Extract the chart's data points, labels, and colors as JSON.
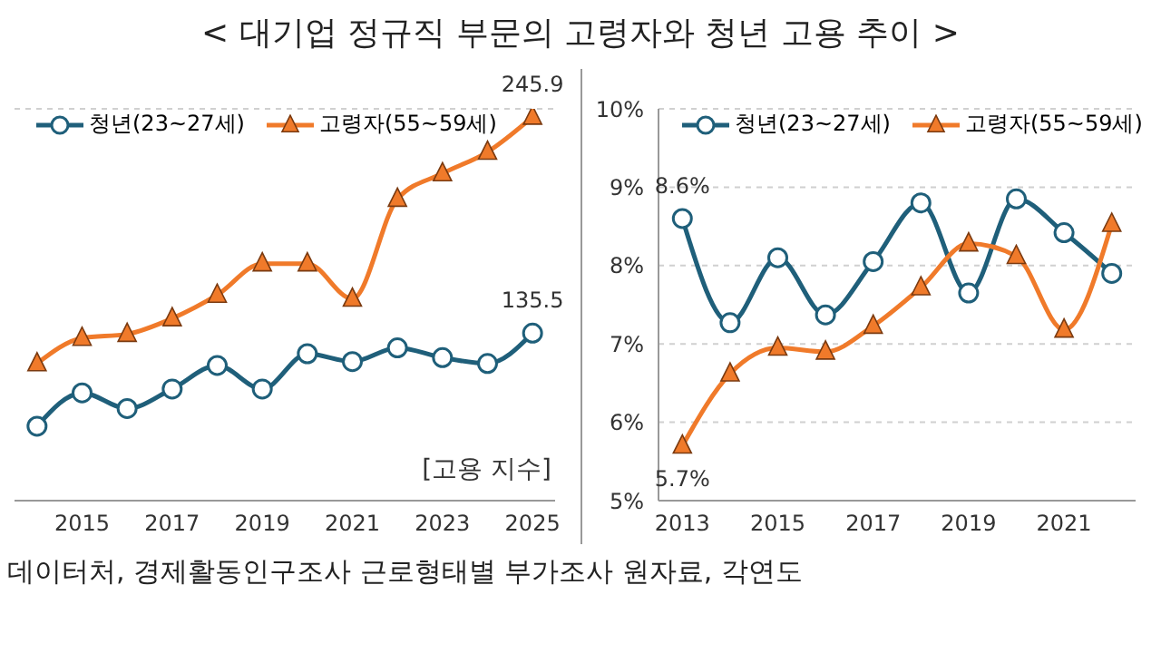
{
  "chart_data": [
    {
      "type": "line",
      "title": "< 대기업 정규직 부문의 고령자와 청년 고용 추이 >",
      "annotations": [
        "[고용 지수]",
        "데이터처, 경제활동인구조사 근로형태별 부가조사 원자료, 각연도"
      ],
      "x": [
        2014,
        2015,
        2016,
        2017,
        2018,
        2019,
        2020,
        2021,
        2022,
        2023,
        2024,
        2025
      ],
      "xlim": [
        2013.5,
        2025.5
      ],
      "xticks": [
        2015,
        2017,
        2019,
        2021,
        2023,
        2025
      ],
      "ylim": [
        50,
        250
      ],
      "tick_labels": "x",
      "grid": "y",
      "legend": "top left",
      "series": [
        {
          "name": "청년(23~27세)",
          "color": "#1f5f7a",
          "marker": "circle",
          "values": [
            88,
            105,
            97,
            107,
            119,
            107,
            125,
            121,
            128,
            123,
            120,
            135.5
          ],
          "value_labels": [
            null,
            null,
            null,
            null,
            null,
            null,
            null,
            null,
            null,
            null,
            null,
            "135.5"
          ]
        },
        {
          "name": "고령자(55~59세)",
          "color": "#f07a2a",
          "marker": "triangle",
          "values": [
            120,
            133,
            135,
            143,
            155,
            171,
            171,
            153,
            204,
            217,
            228,
            245.9
          ],
          "value_labels": [
            null,
            null,
            null,
            null,
            null,
            null,
            null,
            null,
            null,
            null,
            null,
            "245.9"
          ]
        }
      ]
    },
    {
      "type": "line",
      "x": [
        2013,
        2014,
        2015,
        2016,
        2017,
        2018,
        2019,
        2020,
        2021,
        2022
      ],
      "xlim": [
        2012.5,
        2022.5
      ],
      "xticks": [
        2013,
        2015,
        2017,
        2019,
        2021
      ],
      "ylim": [
        5,
        10
      ],
      "yticks": [
        {
          "value": 5,
          "label": "5%"
        },
        {
          "value": 6,
          "label": "6%"
        },
        {
          "value": 7,
          "label": "7%"
        },
        {
          "value": 8,
          "label": "8%"
        },
        {
          "value": 9,
          "label": "9%"
        },
        {
          "value": 10,
          "label": "10%"
        }
      ],
      "grid": "y",
      "legend": "top left",
      "series": [
        {
          "name": "청년(23~27세)",
          "color": "#1f5f7a",
          "marker": "circle",
          "values": [
            8.6,
            7.27,
            8.1,
            7.37,
            8.05,
            8.8,
            7.65,
            8.85,
            8.42,
            7.9
          ],
          "value_labels": [
            "8.6%",
            null,
            null,
            null,
            null,
            null,
            null,
            null,
            null,
            null
          ]
        },
        {
          "name": "고령자(55~59세)",
          "color": "#f07a2a",
          "marker": "triangle",
          "values": [
            5.7,
            6.62,
            6.95,
            6.9,
            7.23,
            7.72,
            8.28,
            8.12,
            7.18,
            8.53
          ],
          "value_labels": [
            "5.7%",
            null,
            null,
            null,
            null,
            null,
            null,
            null,
            null,
            null
          ]
        }
      ]
    }
  ]
}
